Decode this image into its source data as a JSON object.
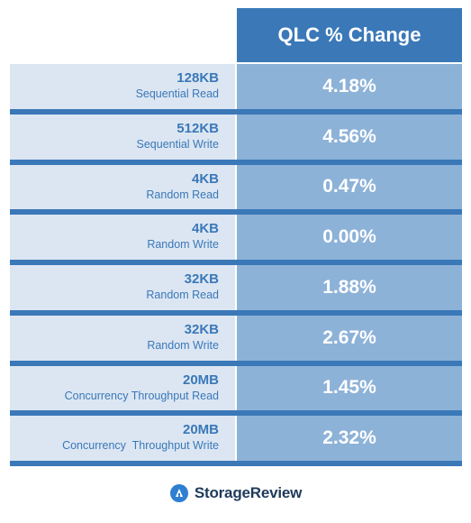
{
  "header": {
    "title": "QLC % Change"
  },
  "rows": [
    {
      "main": "128KB",
      "sub": "Sequential Read",
      "value": "4.18%"
    },
    {
      "main": "512KB",
      "sub": "Sequential Write",
      "value": "4.56%"
    },
    {
      "main": "4KB",
      "sub": "Random Read",
      "value": "0.47%"
    },
    {
      "main": "4KB",
      "sub": "Random Write",
      "value": "0.00%"
    },
    {
      "main": "32KB",
      "sub": "Random Read",
      "value": "1.88%"
    },
    {
      "main": "32KB",
      "sub": "Random Write",
      "value": "2.67%"
    },
    {
      "main": "20MB",
      "sub": "Concurrency Throughput Read",
      "value": "1.45%"
    },
    {
      "main": "20MB",
      "sub": "Concurrency  Throughput Write",
      "value": "2.32%"
    }
  ],
  "chart_data": {
    "type": "table",
    "columns": [
      "",
      "QLC % Change"
    ],
    "categories": [
      "128KB Sequential Read",
      "512KB Sequential Write",
      "4KB Random Read",
      "4KB Random Write",
      "32KB Random Read",
      "32KB Random Write",
      "20MB Concurrency Throughput Read",
      "20MB Concurrency  Throughput Write"
    ],
    "values": [
      4.18,
      4.56,
      0.47,
      0.0,
      1.88,
      2.67,
      1.45,
      2.32
    ]
  },
  "logo": {
    "text": "StorageReview",
    "icon": "storagereview-logo-icon"
  },
  "colors": {
    "header_bg": "#3a78b8",
    "label_bg": "#dce6f2",
    "value_bg": "#8db2d8",
    "label_text": "#3a78b8"
  }
}
